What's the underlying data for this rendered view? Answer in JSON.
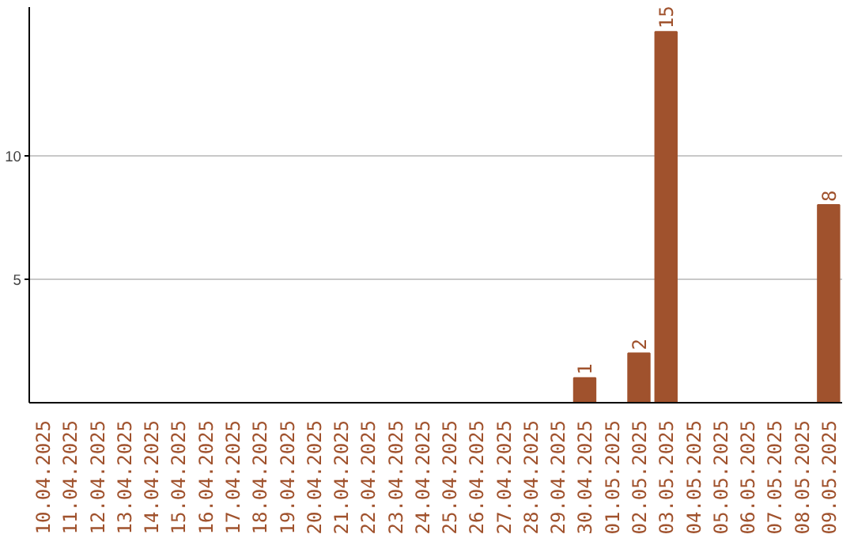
{
  "chart_data": {
    "type": "bar",
    "categories": [
      "10.04.2025",
      "11.04.2025",
      "12.04.2025",
      "13.04.2025",
      "14.04.2025",
      "15.04.2025",
      "16.04.2025",
      "17.04.2025",
      "18.04.2025",
      "19.04.2025",
      "20.04.2025",
      "21.04.2025",
      "22.04.2025",
      "23.04.2025",
      "24.04.2025",
      "25.04.2025",
      "26.04.2025",
      "27.04.2025",
      "28.04.2025",
      "29.04.2025",
      "30.04.2025",
      "01.05.2025",
      "02.05.2025",
      "03.05.2025",
      "04.05.2025",
      "05.05.2025",
      "06.05.2025",
      "07.05.2025",
      "08.05.2025",
      "09.05.2025"
    ],
    "values": [
      0,
      0,
      0,
      0,
      0,
      0,
      0,
      0,
      0,
      0,
      0,
      0,
      0,
      0,
      0,
      0,
      0,
      0,
      0,
      0,
      1,
      0,
      2,
      15,
      0,
      0,
      0,
      0,
      0,
      8
    ],
    "value_labels": [
      null,
      null,
      null,
      null,
      null,
      null,
      null,
      null,
      null,
      null,
      null,
      null,
      null,
      null,
      null,
      null,
      null,
      null,
      null,
      null,
      "1",
      null,
      "2",
      "15",
      null,
      null,
      null,
      null,
      null,
      "8"
    ],
    "color": "#a0522d",
    "ylim": [
      0,
      16
    ],
    "yticks": [
      5,
      10
    ],
    "grid": "y"
  }
}
